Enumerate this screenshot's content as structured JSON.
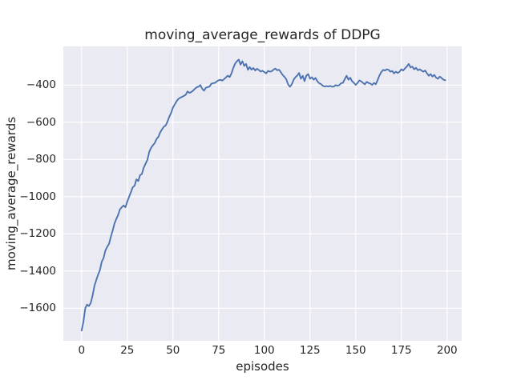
{
  "figure": {
    "background": "#ffffff",
    "text_color": "#262626"
  },
  "chart_data": {
    "type": "line",
    "title": "moving_average_rewards of DDPG",
    "xlabel": "episodes",
    "ylabel": "moving_average_rewards",
    "xlim": [
      -10,
      208
    ],
    "ylim": [
      -1775,
      -192
    ],
    "grid": true,
    "legend_position": "none",
    "plot_background": "#eaeaf2",
    "grid_color": "#ffffff",
    "text_color": "#262626",
    "x_ticks": {
      "values": [
        0,
        25,
        50,
        75,
        100,
        125,
        150,
        175,
        200
      ],
      "labels": [
        "0",
        "25",
        "50",
        "75",
        "100",
        "125",
        "150",
        "175",
        "200"
      ]
    },
    "y_ticks": {
      "values": [
        -400,
        -600,
        -800,
        -1000,
        -1200,
        -1400,
        -1600
      ],
      "labels": [
        "−400",
        "−600",
        "−800",
        "−1000",
        "−1200",
        "−1400",
        "−1600"
      ]
    },
    "series": [
      {
        "name": "moving_average_rewards",
        "color": "#4c72b0",
        "points": [
          [
            0,
            -1720
          ],
          [
            1,
            -1672
          ],
          [
            2,
            -1600
          ],
          [
            3,
            -1580
          ],
          [
            4,
            -1588
          ],
          [
            5,
            -1572
          ],
          [
            6,
            -1532
          ],
          [
            7,
            -1480
          ],
          [
            8,
            -1450
          ],
          [
            9,
            -1420
          ],
          [
            10,
            -1396
          ],
          [
            11,
            -1350
          ],
          [
            12,
            -1330
          ],
          [
            13,
            -1290
          ],
          [
            14,
            -1270
          ],
          [
            15,
            -1254
          ],
          [
            16,
            -1216
          ],
          [
            17,
            -1182
          ],
          [
            18,
            -1145
          ],
          [
            19,
            -1120
          ],
          [
            20,
            -1098
          ],
          [
            21,
            -1068
          ],
          [
            22,
            -1056
          ],
          [
            23,
            -1047
          ],
          [
            24,
            -1057
          ],
          [
            25,
            -1026
          ],
          [
            26,
            -1000
          ],
          [
            27,
            -975
          ],
          [
            28,
            -950
          ],
          [
            29,
            -941
          ],
          [
            30,
            -907
          ],
          [
            31,
            -916
          ],
          [
            32,
            -884
          ],
          [
            33,
            -878
          ],
          [
            34,
            -844
          ],
          [
            35,
            -823
          ],
          [
            36,
            -802
          ],
          [
            37,
            -759
          ],
          [
            38,
            -738
          ],
          [
            39,
            -724
          ],
          [
            40,
            -712
          ],
          [
            41,
            -690
          ],
          [
            42,
            -678
          ],
          [
            43,
            -655
          ],
          [
            44,
            -638
          ],
          [
            45,
            -624
          ],
          [
            46,
            -617
          ],
          [
            47,
            -597
          ],
          [
            48,
            -570
          ],
          [
            49,
            -550
          ],
          [
            50,
            -520
          ],
          [
            51,
            -503
          ],
          [
            52,
            -487
          ],
          [
            53,
            -474
          ],
          [
            54,
            -468
          ],
          [
            55,
            -463
          ],
          [
            56,
            -458
          ],
          [
            57,
            -452
          ],
          [
            58,
            -434
          ],
          [
            59,
            -442
          ],
          [
            60,
            -437
          ],
          [
            61,
            -430
          ],
          [
            62,
            -420
          ],
          [
            63,
            -412
          ],
          [
            64,
            -409
          ],
          [
            65,
            -400
          ],
          [
            66,
            -420
          ],
          [
            67,
            -430
          ],
          [
            68,
            -415
          ],
          [
            69,
            -411
          ],
          [
            70,
            -408
          ],
          [
            71,
            -393
          ],
          [
            72,
            -390
          ],
          [
            73,
            -388
          ],
          [
            74,
            -380
          ],
          [
            75,
            -374
          ],
          [
            76,
            -372
          ],
          [
            77,
            -376
          ],
          [
            78,
            -368
          ],
          [
            79,
            -359
          ],
          [
            80,
            -349
          ],
          [
            81,
            -357
          ],
          [
            82,
            -338
          ],
          [
            83,
            -308
          ],
          [
            84,
            -285
          ],
          [
            85,
            -272
          ],
          [
            86,
            -263
          ],
          [
            87,
            -290
          ],
          [
            88,
            -272
          ],
          [
            89,
            -297
          ],
          [
            90,
            -286
          ],
          [
            91,
            -318
          ],
          [
            92,
            -303
          ],
          [
            93,
            -317
          ],
          [
            94,
            -308
          ],
          [
            95,
            -321
          ],
          [
            96,
            -312
          ],
          [
            97,
            -319
          ],
          [
            98,
            -327
          ],
          [
            99,
            -323
          ],
          [
            100,
            -330
          ],
          [
            101,
            -337
          ],
          [
            102,
            -324
          ],
          [
            103,
            -327
          ],
          [
            104,
            -326
          ],
          [
            105,
            -317
          ],
          [
            106,
            -311
          ],
          [
            107,
            -320
          ],
          [
            108,
            -317
          ],
          [
            109,
            -330
          ],
          [
            110,
            -345
          ],
          [
            111,
            -356
          ],
          [
            112,
            -368
          ],
          [
            113,
            -396
          ],
          [
            114,
            -409
          ],
          [
            115,
            -396
          ],
          [
            116,
            -372
          ],
          [
            117,
            -358
          ],
          [
            118,
            -349
          ],
          [
            119,
            -335
          ],
          [
            120,
            -366
          ],
          [
            121,
            -350
          ],
          [
            122,
            -379
          ],
          [
            123,
            -349
          ],
          [
            124,
            -341
          ],
          [
            125,
            -366
          ],
          [
            126,
            -358
          ],
          [
            127,
            -371
          ],
          [
            128,
            -362
          ],
          [
            129,
            -379
          ],
          [
            130,
            -390
          ],
          [
            131,
            -395
          ],
          [
            132,
            -403
          ],
          [
            133,
            -408
          ],
          [
            134,
            -405
          ],
          [
            135,
            -408
          ],
          [
            136,
            -404
          ],
          [
            137,
            -409
          ],
          [
            138,
            -408
          ],
          [
            139,
            -400
          ],
          [
            140,
            -404
          ],
          [
            141,
            -400
          ],
          [
            142,
            -390
          ],
          [
            143,
            -388
          ],
          [
            144,
            -368
          ],
          [
            145,
            -350
          ],
          [
            146,
            -371
          ],
          [
            147,
            -360
          ],
          [
            148,
            -379
          ],
          [
            149,
            -388
          ],
          [
            150,
            -399
          ],
          [
            151,
            -388
          ],
          [
            152,
            -375
          ],
          [
            153,
            -380
          ],
          [
            154,
            -388
          ],
          [
            155,
            -396
          ],
          [
            156,
            -383
          ],
          [
            157,
            -388
          ],
          [
            158,
            -392
          ],
          [
            159,
            -399
          ],
          [
            160,
            -388
          ],
          [
            161,
            -396
          ],
          [
            162,
            -373
          ],
          [
            163,
            -348
          ],
          [
            164,
            -330
          ],
          [
            165,
            -318
          ],
          [
            166,
            -322
          ],
          [
            167,
            -315
          ],
          [
            168,
            -318
          ],
          [
            169,
            -328
          ],
          [
            170,
            -324
          ],
          [
            171,
            -337
          ],
          [
            172,
            -328
          ],
          [
            173,
            -335
          ],
          [
            174,
            -328
          ],
          [
            175,
            -315
          ],
          [
            176,
            -322
          ],
          [
            177,
            -310
          ],
          [
            178,
            -300
          ],
          [
            179,
            -286
          ],
          [
            180,
            -305
          ],
          [
            181,
            -301
          ],
          [
            182,
            -315
          ],
          [
            183,
            -307
          ],
          [
            184,
            -320
          ],
          [
            185,
            -315
          ],
          [
            186,
            -322
          ],
          [
            187,
            -328
          ],
          [
            188,
            -322
          ],
          [
            189,
            -337
          ],
          [
            190,
            -350
          ],
          [
            191,
            -341
          ],
          [
            192,
            -354
          ],
          [
            193,
            -345
          ],
          [
            194,
            -360
          ],
          [
            195,
            -366
          ],
          [
            196,
            -354
          ],
          [
            197,
            -362
          ],
          [
            198,
            -371
          ],
          [
            199,
            -374
          ]
        ]
      }
    ]
  }
}
